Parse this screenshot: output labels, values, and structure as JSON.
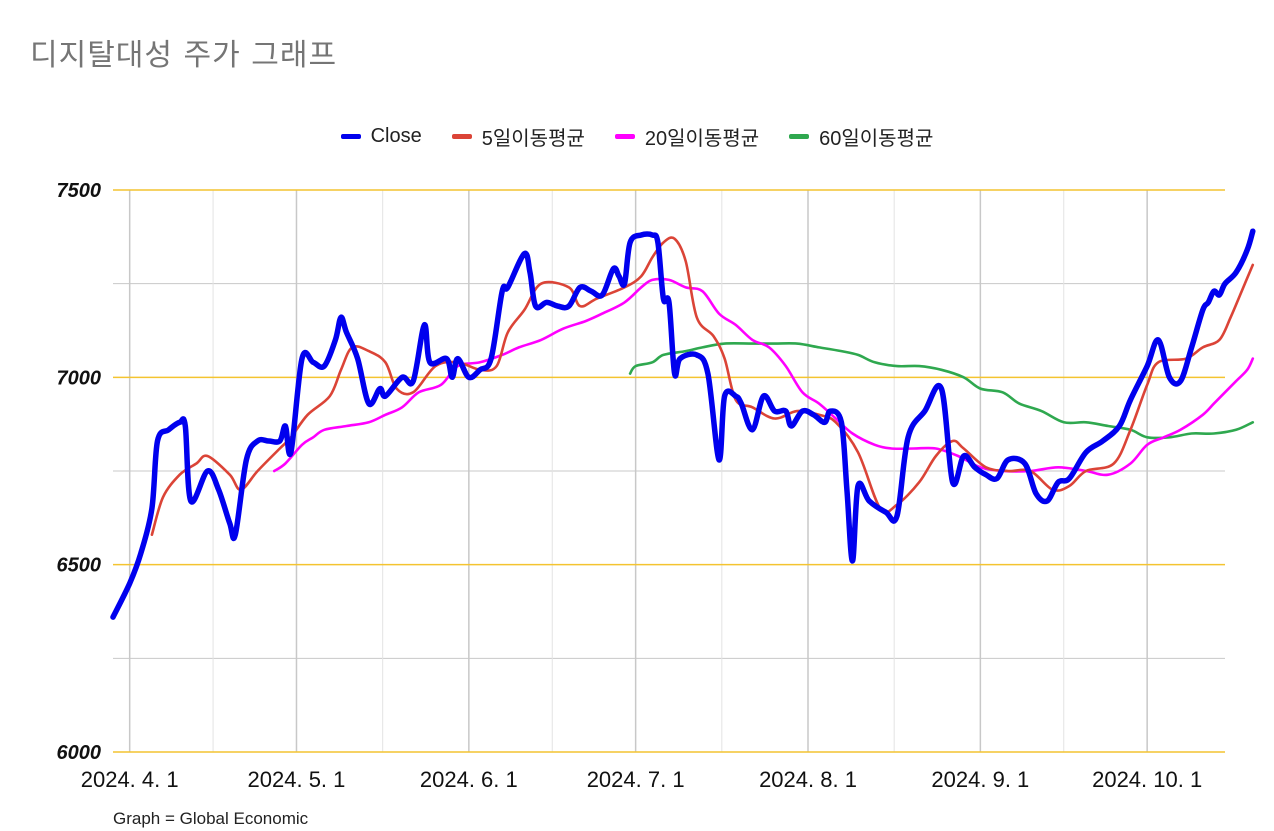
{
  "title": "디지탈대성 주가 그래프",
  "source": "Graph = Global Economic",
  "legend": [
    {
      "name": "Close",
      "color": "#0000ee"
    },
    {
      "name": "5일이동평균",
      "color": "#db4437"
    },
    {
      "name": "20일이동평균",
      "color": "#ff00ff"
    },
    {
      "name": "60일이동평균",
      "color": "#2fa84f"
    }
  ],
  "chart_data": {
    "type": "line",
    "x_axis": {
      "min": "2024-03-29",
      "max": "2024-10-15",
      "ticks": [
        {
          "date": "2024-04-01",
          "label": "2024. 4. 1"
        },
        {
          "date": "2024-05-01",
          "label": "2024. 5. 1"
        },
        {
          "date": "2024-06-01",
          "label": "2024. 6. 1"
        },
        {
          "date": "2024-07-01",
          "label": "2024. 7. 1"
        },
        {
          "date": "2024-08-01",
          "label": "2024. 8. 1"
        },
        {
          "date": "2024-09-01",
          "label": "2024. 9. 1"
        },
        {
          "date": "2024-10-01",
          "label": "2024. 10. 1"
        }
      ]
    },
    "y_axis": {
      "min": 6000,
      "max": 7500,
      "ticks": [
        6000,
        6500,
        7000,
        7500
      ]
    },
    "grid": true,
    "legend_position": "top-center",
    "series": [
      {
        "name": "Close",
        "color": "#0000ee",
        "points": [
          [
            "2024-03-29",
            6360
          ],
          [
            "2024-04-01",
            6450
          ],
          [
            "2024-04-03",
            6530
          ],
          [
            "2024-04-05",
            6650
          ],
          [
            "2024-04-06",
            6830
          ],
          [
            "2024-04-08",
            6860
          ],
          [
            "2024-04-10",
            6880
          ],
          [
            "2024-04-11",
            6870
          ],
          [
            "2024-04-12",
            6670
          ],
          [
            "2024-04-15",
            6750
          ],
          [
            "2024-04-17",
            6700
          ],
          [
            "2024-04-19",
            6610
          ],
          [
            "2024-04-20",
            6580
          ],
          [
            "2024-04-22",
            6780
          ],
          [
            "2024-04-24",
            6830
          ],
          [
            "2024-04-26",
            6830
          ],
          [
            "2024-04-28",
            6830
          ],
          [
            "2024-04-29",
            6870
          ],
          [
            "2024-04-30",
            6800
          ],
          [
            "2024-05-02",
            7050
          ],
          [
            "2024-05-04",
            7040
          ],
          [
            "2024-05-06",
            7030
          ],
          [
            "2024-05-08",
            7100
          ],
          [
            "2024-05-09",
            7160
          ],
          [
            "2024-05-10",
            7120
          ],
          [
            "2024-05-12",
            7050
          ],
          [
            "2024-05-14",
            6930
          ],
          [
            "2024-05-16",
            6970
          ],
          [
            "2024-05-17",
            6950
          ],
          [
            "2024-05-20",
            7000
          ],
          [
            "2024-05-22",
            6990
          ],
          [
            "2024-05-24",
            7140
          ],
          [
            "2024-05-25",
            7040
          ],
          [
            "2024-05-28",
            7050
          ],
          [
            "2024-05-29",
            7000
          ],
          [
            "2024-05-30",
            7050
          ],
          [
            "2024-06-01",
            7000
          ],
          [
            "2024-06-03",
            7020
          ],
          [
            "2024-06-05",
            7050
          ],
          [
            "2024-06-07",
            7230
          ],
          [
            "2024-06-08",
            7240
          ],
          [
            "2024-06-11",
            7330
          ],
          [
            "2024-06-12",
            7280
          ],
          [
            "2024-06-13",
            7190
          ],
          [
            "2024-06-15",
            7200
          ],
          [
            "2024-06-17",
            7190
          ],
          [
            "2024-06-19",
            7190
          ],
          [
            "2024-06-21",
            7240
          ],
          [
            "2024-06-23",
            7230
          ],
          [
            "2024-06-25",
            7220
          ],
          [
            "2024-06-27",
            7290
          ],
          [
            "2024-06-28",
            7270
          ],
          [
            "2024-06-29",
            7250
          ],
          [
            "2024-06-30",
            7360
          ],
          [
            "2024-07-02",
            7380
          ],
          [
            "2024-07-04",
            7380
          ],
          [
            "2024-07-05",
            7360
          ],
          [
            "2024-07-06",
            7210
          ],
          [
            "2024-07-07",
            7200
          ],
          [
            "2024-07-08",
            7010
          ],
          [
            "2024-07-09",
            7050
          ],
          [
            "2024-07-12",
            7060
          ],
          [
            "2024-07-14",
            7010
          ],
          [
            "2024-07-16",
            6780
          ],
          [
            "2024-07-17",
            6950
          ],
          [
            "2024-07-19",
            6950
          ],
          [
            "2024-07-20",
            6930
          ],
          [
            "2024-07-22",
            6860
          ],
          [
            "2024-07-24",
            6950
          ],
          [
            "2024-07-26",
            6910
          ],
          [
            "2024-07-28",
            6910
          ],
          [
            "2024-07-29",
            6870
          ],
          [
            "2024-07-31",
            6910
          ],
          [
            "2024-08-02",
            6900
          ],
          [
            "2024-08-04",
            6880
          ],
          [
            "2024-08-05",
            6910
          ],
          [
            "2024-08-07",
            6880
          ],
          [
            "2024-08-08",
            6700
          ],
          [
            "2024-08-09",
            6510
          ],
          [
            "2024-08-10",
            6710
          ],
          [
            "2024-08-12",
            6670
          ],
          [
            "2024-08-15",
            6640
          ],
          [
            "2024-08-17",
            6630
          ],
          [
            "2024-08-19",
            6840
          ],
          [
            "2024-08-22",
            6910
          ],
          [
            "2024-08-25",
            6970
          ],
          [
            "2024-08-27",
            6720
          ],
          [
            "2024-08-29",
            6790
          ],
          [
            "2024-08-31",
            6760
          ],
          [
            "2024-09-02",
            6740
          ],
          [
            "2024-09-04",
            6730
          ],
          [
            "2024-09-06",
            6780
          ],
          [
            "2024-09-09",
            6770
          ],
          [
            "2024-09-11",
            6690
          ],
          [
            "2024-09-13",
            6670
          ],
          [
            "2024-09-15",
            6720
          ],
          [
            "2024-09-17",
            6730
          ],
          [
            "2024-09-20",
            6800
          ],
          [
            "2024-09-23",
            6830
          ],
          [
            "2024-09-26",
            6870
          ],
          [
            "2024-09-28",
            6940
          ],
          [
            "2024-10-01",
            7030
          ],
          [
            "2024-10-03",
            7100
          ],
          [
            "2024-10-05",
            7000
          ],
          [
            "2024-10-07",
            6990
          ],
          [
            "2024-10-09",
            7080
          ],
          [
            "2024-10-11",
            7180
          ],
          [
            "2024-10-12",
            7200
          ],
          [
            "2024-10-13",
            7230
          ],
          [
            "2024-10-14",
            7220
          ],
          [
            "2024-10-15",
            7250
          ],
          [
            "2024-10-17",
            7280
          ],
          [
            "2024-10-19",
            7340
          ],
          [
            "2024-10-20",
            7390
          ]
        ]
      },
      {
        "name": "5일이동평균",
        "color": "#db4437",
        "points": [
          [
            "2024-04-05",
            6580
          ],
          [
            "2024-04-07",
            6680
          ],
          [
            "2024-04-10",
            6740
          ],
          [
            "2024-04-13",
            6770
          ],
          [
            "2024-04-15",
            6790
          ],
          [
            "2024-04-19",
            6740
          ],
          [
            "2024-04-21",
            6700
          ],
          [
            "2024-04-24",
            6750
          ],
          [
            "2024-04-28",
            6810
          ],
          [
            "2024-04-30",
            6840
          ],
          [
            "2024-05-03",
            6900
          ],
          [
            "2024-05-07",
            6950
          ],
          [
            "2024-05-09",
            7020
          ],
          [
            "2024-05-11",
            7080
          ],
          [
            "2024-05-14",
            7070
          ],
          [
            "2024-05-17",
            7040
          ],
          [
            "2024-05-19",
            6970
          ],
          [
            "2024-05-22",
            6960
          ],
          [
            "2024-05-26",
            7030
          ],
          [
            "2024-05-30",
            7040
          ],
          [
            "2024-06-03",
            7020
          ],
          [
            "2024-06-06",
            7030
          ],
          [
            "2024-06-08",
            7120
          ],
          [
            "2024-06-11",
            7180
          ],
          [
            "2024-06-14",
            7250
          ],
          [
            "2024-06-19",
            7240
          ],
          [
            "2024-06-21",
            7190
          ],
          [
            "2024-06-24",
            7210
          ],
          [
            "2024-06-29",
            7240
          ],
          [
            "2024-07-02",
            7270
          ],
          [
            "2024-07-04",
            7320
          ],
          [
            "2024-07-06",
            7360
          ],
          [
            "2024-07-08",
            7370
          ],
          [
            "2024-07-10",
            7310
          ],
          [
            "2024-07-12",
            7160
          ],
          [
            "2024-07-15",
            7110
          ],
          [
            "2024-07-17",
            7050
          ],
          [
            "2024-07-19",
            6940
          ],
          [
            "2024-07-22",
            6920
          ],
          [
            "2024-07-26",
            6890
          ],
          [
            "2024-07-30",
            6910
          ],
          [
            "2024-08-03",
            6900
          ],
          [
            "2024-08-06",
            6880
          ],
          [
            "2024-08-10",
            6800
          ],
          [
            "2024-08-14",
            6650
          ],
          [
            "2024-08-17",
            6660
          ],
          [
            "2024-08-21",
            6720
          ],
          [
            "2024-08-24",
            6790
          ],
          [
            "2024-08-27",
            6830
          ],
          [
            "2024-08-29",
            6810
          ],
          [
            "2024-09-02",
            6760
          ],
          [
            "2024-09-06",
            6750
          ],
          [
            "2024-09-10",
            6750
          ],
          [
            "2024-09-14",
            6700
          ],
          [
            "2024-09-17",
            6710
          ],
          [
            "2024-09-20",
            6750
          ],
          [
            "2024-09-25",
            6770
          ],
          [
            "2024-09-28",
            6860
          ],
          [
            "2024-10-01",
            6980
          ],
          [
            "2024-10-03",
            7040
          ],
          [
            "2024-10-08",
            7050
          ],
          [
            "2024-10-11",
            7080
          ],
          [
            "2024-10-14",
            7100
          ],
          [
            "2024-10-16",
            7160
          ],
          [
            "2024-10-18",
            7230
          ],
          [
            "2024-10-20",
            7300
          ]
        ]
      },
      {
        "name": "20일이동평균",
        "color": "#ff00ff",
        "points": [
          [
            "2024-04-27",
            6750
          ],
          [
            "2024-04-29",
            6770
          ],
          [
            "2024-05-02",
            6820
          ],
          [
            "2024-05-04",
            6840
          ],
          [
            "2024-05-06",
            6860
          ],
          [
            "2024-05-10",
            6870
          ],
          [
            "2024-05-14",
            6880
          ],
          [
            "2024-05-17",
            6900
          ],
          [
            "2024-05-20",
            6920
          ],
          [
            "2024-05-23",
            6960
          ],
          [
            "2024-05-27",
            6980
          ],
          [
            "2024-05-30",
            7030
          ],
          [
            "2024-06-03",
            7040
          ],
          [
            "2024-06-07",
            7060
          ],
          [
            "2024-06-10",
            7080
          ],
          [
            "2024-06-14",
            7100
          ],
          [
            "2024-06-18",
            7130
          ],
          [
            "2024-06-22",
            7150
          ],
          [
            "2024-06-25",
            7170
          ],
          [
            "2024-06-29",
            7200
          ],
          [
            "2024-07-02",
            7240
          ],
          [
            "2024-07-04",
            7260
          ],
          [
            "2024-07-07",
            7260
          ],
          [
            "2024-07-10",
            7240
          ],
          [
            "2024-07-13",
            7230
          ],
          [
            "2024-07-16",
            7170
          ],
          [
            "2024-07-19",
            7140
          ],
          [
            "2024-07-22",
            7100
          ],
          [
            "2024-07-25",
            7080
          ],
          [
            "2024-07-28",
            7030
          ],
          [
            "2024-07-31",
            6960
          ],
          [
            "2024-08-03",
            6930
          ],
          [
            "2024-08-06",
            6890
          ],
          [
            "2024-08-09",
            6850
          ],
          [
            "2024-08-13",
            6820
          ],
          [
            "2024-08-16",
            6810
          ],
          [
            "2024-08-20",
            6810
          ],
          [
            "2024-08-24",
            6810
          ],
          [
            "2024-08-28",
            6790
          ],
          [
            "2024-09-01",
            6760
          ],
          [
            "2024-09-05",
            6750
          ],
          [
            "2024-09-10",
            6750
          ],
          [
            "2024-09-15",
            6760
          ],
          [
            "2024-09-20",
            6750
          ],
          [
            "2024-09-24",
            6740
          ],
          [
            "2024-09-28",
            6770
          ],
          [
            "2024-10-01",
            6820
          ],
          [
            "2024-10-04",
            6840
          ],
          [
            "2024-10-07",
            6860
          ],
          [
            "2024-10-11",
            6900
          ],
          [
            "2024-10-13",
            6930
          ],
          [
            "2024-10-15",
            6960
          ],
          [
            "2024-10-17",
            6990
          ],
          [
            "2024-10-19",
            7020
          ],
          [
            "2024-10-20",
            7050
          ]
        ]
      },
      {
        "name": "60일이동평균",
        "color": "#2fa84f",
        "points": [
          [
            "2024-06-30",
            7010
          ],
          [
            "2024-07-01",
            7030
          ],
          [
            "2024-07-04",
            7040
          ],
          [
            "2024-07-06",
            7060
          ],
          [
            "2024-07-10",
            7070
          ],
          [
            "2024-07-13",
            7080
          ],
          [
            "2024-07-17",
            7090
          ],
          [
            "2024-07-22",
            7090
          ],
          [
            "2024-07-26",
            7090
          ],
          [
            "2024-07-30",
            7090
          ],
          [
            "2024-08-03",
            7080
          ],
          [
            "2024-08-07",
            7070
          ],
          [
            "2024-08-10",
            7060
          ],
          [
            "2024-08-13",
            7040
          ],
          [
            "2024-08-17",
            7030
          ],
          [
            "2024-08-21",
            7030
          ],
          [
            "2024-08-25",
            7020
          ],
          [
            "2024-08-29",
            7000
          ],
          [
            "2024-09-01",
            6970
          ],
          [
            "2024-09-05",
            6960
          ],
          [
            "2024-09-08",
            6930
          ],
          [
            "2024-09-12",
            6910
          ],
          [
            "2024-09-16",
            6880
          ],
          [
            "2024-09-20",
            6880
          ],
          [
            "2024-09-24",
            6870
          ],
          [
            "2024-09-28",
            6860
          ],
          [
            "2024-10-01",
            6840
          ],
          [
            "2024-10-05",
            6840
          ],
          [
            "2024-10-09",
            6850
          ],
          [
            "2024-10-13",
            6850
          ],
          [
            "2024-10-17",
            6860
          ],
          [
            "2024-10-20",
            6880
          ]
        ]
      }
    ]
  }
}
